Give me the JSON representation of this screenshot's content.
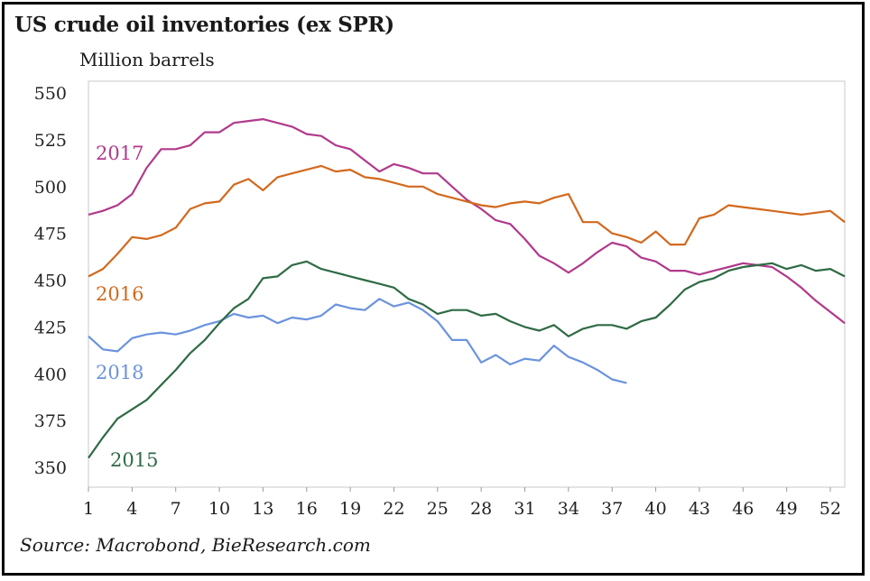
{
  "title": "US crude oil inventories (ex SPR)",
  "subtitle": "Million barrels",
  "source": "Source: Macrobond, BieResearch.com",
  "chart_data": {
    "type": "line",
    "title": "US crude oil inventories (ex SPR)",
    "ylabel": "Million barrels",
    "xlabel": "",
    "xlim": [
      1,
      53
    ],
    "ylim": [
      350,
      550
    ],
    "x_ticks": [
      1,
      4,
      7,
      10,
      13,
      16,
      19,
      22,
      25,
      28,
      31,
      34,
      37,
      40,
      43,
      46,
      49,
      52
    ],
    "y_ticks": [
      350,
      375,
      400,
      425,
      450,
      475,
      500,
      525,
      550
    ],
    "grid": false,
    "legend": "inline labels",
    "series": [
      {
        "name": "2017",
        "color": "#b03a8c",
        "values": [
          485,
          487,
          490,
          496,
          510,
          520,
          520,
          522,
          529,
          529,
          534,
          535,
          536,
          534,
          532,
          528,
          527,
          522,
          520,
          514,
          508,
          512,
          510,
          507,
          507,
          500,
          493,
          488,
          482,
          480,
          472,
          463,
          459,
          454,
          459,
          465,
          470,
          468,
          462,
          460,
          455,
          455,
          453,
          455,
          457,
          459,
          458,
          457,
          452,
          446,
          439,
          433,
          427
        ]
      },
      {
        "name": "2016",
        "color": "#d2691e",
        "values": [
          452,
          456,
          464,
          473,
          472,
          474,
          478,
          488,
          491,
          492,
          501,
          504,
          498,
          505,
          507,
          509,
          511,
          508,
          509,
          505,
          504,
          502,
          500,
          500,
          496,
          494,
          492,
          490,
          489,
          491,
          492,
          491,
          494,
          496,
          481,
          481,
          475,
          473,
          470,
          476,
          469,
          469,
          483,
          485,
          490,
          489,
          488,
          487,
          486,
          485,
          486,
          487,
          481
        ]
      },
      {
        "name": "2018",
        "color": "#6b93dd",
        "values": [
          420,
          413,
          412,
          419,
          421,
          422,
          421,
          423,
          426,
          428,
          432,
          430,
          431,
          427,
          430,
          429,
          431,
          437,
          435,
          434,
          440,
          436,
          438,
          434,
          428,
          418,
          418,
          406,
          410,
          405,
          408,
          407,
          415,
          409,
          406,
          402,
          397,
          395
        ]
      },
      {
        "name": "2015",
        "color": "#2e6b45",
        "values": [
          355,
          366,
          376,
          381,
          386,
          394,
          402,
          411,
          418,
          427,
          435,
          440,
          451,
          452,
          458,
          460,
          456,
          454,
          452,
          450,
          448,
          446,
          440,
          437,
          432,
          434,
          434,
          431,
          432,
          428,
          425,
          423,
          426,
          420,
          424,
          426,
          426,
          424,
          428,
          430,
          437,
          445,
          449,
          451,
          455,
          457,
          458,
          459,
          456,
          458,
          455,
          456,
          452
        ]
      }
    ],
    "series_labels": [
      {
        "text": "2017",
        "series": "2017"
      },
      {
        "text": "2016",
        "series": "2016"
      },
      {
        "text": "2018",
        "series": "2018"
      },
      {
        "text": "2015",
        "series": "2015"
      }
    ]
  }
}
